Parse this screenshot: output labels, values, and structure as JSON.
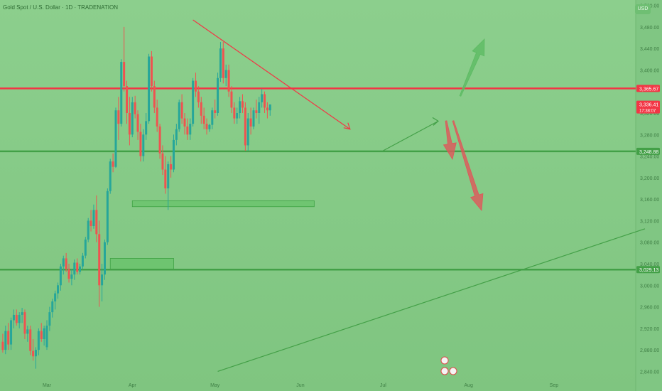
{
  "header": {
    "title": "Gold Spot / U.S. Dollar · 1D · TRADENATION",
    "currency": "USD"
  },
  "chart_data": {
    "type": "candlestick",
    "ylim": [
      2830,
      3530
    ],
    "y_ticks": [
      2840,
      2880,
      2920,
      2960,
      3000,
      3040,
      3080,
      3120,
      3160,
      3200,
      3240,
      3280,
      3320,
      3400,
      3440,
      3480,
      3520
    ],
    "x_ticks": [
      {
        "label": "Mar",
        "day": 0
      },
      {
        "label": "Apr",
        "day": 31
      },
      {
        "label": "May",
        "day": 61
      },
      {
        "label": "Jun",
        "day": 92
      },
      {
        "label": "Jul",
        "day": 122
      },
      {
        "label": "Aug",
        "day": 153
      },
      {
        "label": "Sep",
        "day": 184
      }
    ],
    "price_labels": [
      {
        "value": 3365.67,
        "text": "3,365.67",
        "color": "#f23645"
      },
      {
        "value": 3336.41,
        "text": "3,336.41",
        "sub": "17:38:07",
        "color": "#f23645"
      },
      {
        "value": 3248.88,
        "text": "3,248.88",
        "color": "#43a047"
      },
      {
        "value": 3029.13,
        "text": "3,029.13",
        "color": "#43a047"
      }
    ],
    "horizontal_lines": [
      {
        "value": 3365.67,
        "color": "#f23645"
      },
      {
        "value": 3248.88,
        "color": "#43a047"
      },
      {
        "value": 3029.13,
        "color": "#43a047"
      }
    ],
    "zones": [
      {
        "day_from": 31,
        "day_to": 97,
        "y_low": 3146,
        "y_high": 3157
      },
      {
        "day_from": 23,
        "day_to": 46,
        "y_low": 3030,
        "y_high": 3050
      }
    ],
    "trendlines": [
      {
        "from": [
          62,
          2840
        ],
        "to": [
          217,
          3105
        ],
        "color": "#43a047"
      },
      {
        "from": [
          122,
          3250
        ],
        "to": [
          142,
          3305
        ],
        "color": "#43a047"
      },
      {
        "from": [
          53,
          3493
        ],
        "to": [
          110,
          3290
        ],
        "color": "#f23645"
      }
    ],
    "candles": [
      [
        -16,
        2895,
        2910,
        2875,
        2880
      ],
      [
        -15,
        2880,
        2925,
        2872,
        2915
      ],
      [
        -14,
        2915,
        2930,
        2880,
        2890
      ],
      [
        -13,
        2890,
        2940,
        2880,
        2935
      ],
      [
        -12,
        2935,
        2955,
        2920,
        2945
      ],
      [
        -11,
        2945,
        2955,
        2925,
        2930
      ],
      [
        -10,
        2930,
        2950,
        2920,
        2945
      ],
      [
        -9,
        2945,
        2958,
        2930,
        2950
      ],
      [
        -8,
        2950,
        2955,
        2900,
        2910
      ],
      [
        -7,
        2910,
        2925,
        2895,
        2918
      ],
      [
        -6,
        2918,
        2925,
        2870,
        2878
      ],
      [
        -5,
        2878,
        2900,
        2860,
        2868
      ],
      [
        -4,
        2868,
        2885,
        2845,
        2880
      ],
      [
        -3,
        2880,
        2920,
        2870,
        2915
      ],
      [
        -2,
        2915,
        2930,
        2895,
        2900
      ],
      [
        -1,
        2900,
        2925,
        2888,
        2920
      ],
      [
        0,
        2885,
        2935,
        2880,
        2925
      ],
      [
        1,
        2925,
        2960,
        2915,
        2950
      ],
      [
        2,
        2950,
        2975,
        2940,
        2970
      ],
      [
        3,
        2970,
        2990,
        2955,
        2985
      ],
      [
        4,
        2985,
        3005,
        2975,
        3000
      ],
      [
        5,
        3000,
        3040,
        2990,
        3035
      ],
      [
        6,
        3035,
        3055,
        3020,
        3050
      ],
      [
        7,
        3050,
        3060,
        3025,
        3030
      ],
      [
        8,
        3030,
        3040,
        3005,
        3012
      ],
      [
        9,
        3012,
        3030,
        3000,
        3020
      ],
      [
        10,
        3020,
        3048,
        3010,
        3042
      ],
      [
        11,
        3042,
        3050,
        3020,
        3025
      ],
      [
        12,
        3025,
        3040,
        3020,
        3035
      ],
      [
        13,
        3035,
        3060,
        3030,
        3055
      ],
      [
        14,
        3055,
        3090,
        3050,
        3085
      ],
      [
        15,
        3085,
        3125,
        3080,
        3120
      ],
      [
        16,
        3120,
        3140,
        3100,
        3110
      ],
      [
        17,
        3110,
        3150,
        3105,
        3140
      ],
      [
        18,
        3140,
        3167,
        3080,
        3095
      ],
      [
        19,
        3095,
        3120,
        2960,
        3000
      ],
      [
        20,
        3000,
        3040,
        2970,
        3020
      ],
      [
        21,
        3020,
        3085,
        3010,
        3080
      ],
      [
        22,
        3080,
        3180,
        3075,
        3175
      ],
      [
        23,
        3175,
        3235,
        3170,
        3230
      ],
      [
        24,
        3230,
        3245,
        3210,
        3220
      ],
      [
        25,
        3220,
        3330,
        3218,
        3325
      ],
      [
        26,
        3325,
        3350,
        3270,
        3300
      ],
      [
        27,
        3300,
        3420,
        3295,
        3415
      ],
      [
        28,
        3415,
        3480,
        3360,
        3370
      ],
      [
        29,
        3370,
        3380,
        3300,
        3320
      ],
      [
        30,
        3320,
        3350,
        3260,
        3280
      ],
      [
        31,
        3280,
        3350,
        3275,
        3340
      ],
      [
        32,
        3340,
        3352,
        3310,
        3318
      ],
      [
        33,
        3318,
        3325,
        3270,
        3285
      ],
      [
        34,
        3285,
        3300,
        3230,
        3240
      ],
      [
        35,
        3240,
        3290,
        3230,
        3280
      ],
      [
        36,
        3280,
        3320,
        3270,
        3305
      ],
      [
        37,
        3305,
        3430,
        3300,
        3425
      ],
      [
        38,
        3425,
        3435,
        3360,
        3370
      ],
      [
        39,
        3370,
        3380,
        3320,
        3330
      ],
      [
        40,
        3330,
        3345,
        3285,
        3295
      ],
      [
        41,
        3295,
        3300,
        3235,
        3245
      ],
      [
        42,
        3245,
        3260,
        3205,
        3215
      ],
      [
        43,
        3215,
        3240,
        3170,
        3180
      ],
      [
        44,
        3180,
        3230,
        3140,
        3225
      ],
      [
        45,
        3225,
        3240,
        3200,
        3215
      ],
      [
        46,
        3215,
        3280,
        3210,
        3270
      ],
      [
        47,
        3270,
        3300,
        3260,
        3290
      ],
      [
        48,
        3290,
        3345,
        3285,
        3340
      ],
      [
        49,
        3340,
        3355,
        3300,
        3310
      ],
      [
        50,
        3310,
        3320,
        3280,
        3295
      ],
      [
        51,
        3295,
        3310,
        3270,
        3280
      ],
      [
        52,
        3280,
        3310,
        3270,
        3300
      ],
      [
        53,
        3300,
        3385,
        3295,
        3380
      ],
      [
        54,
        3380,
        3395,
        3350,
        3360
      ],
      [
        55,
        3360,
        3370,
        3330,
        3340
      ],
      [
        56,
        3340,
        3350,
        3300,
        3315
      ],
      [
        57,
        3315,
        3330,
        3290,
        3300
      ],
      [
        58,
        3300,
        3310,
        3280,
        3290
      ],
      [
        59,
        3290,
        3300,
        3285,
        3298
      ],
      [
        60,
        3298,
        3330,
        3290,
        3325
      ],
      [
        61,
        3325,
        3345,
        3310,
        3320
      ],
      [
        62,
        3320,
        3395,
        3315,
        3385
      ],
      [
        63,
        3385,
        3452,
        3378,
        3440
      ],
      [
        64,
        3440,
        3452,
        3375,
        3385
      ],
      [
        65,
        3385,
        3410,
        3370,
        3400
      ],
      [
        66,
        3400,
        3410,
        3350,
        3360
      ],
      [
        67,
        3360,
        3370,
        3320,
        3330
      ],
      [
        68,
        3330,
        3340,
        3300,
        3310
      ],
      [
        69,
        3310,
        3330,
        3300,
        3320
      ],
      [
        70,
        3320,
        3350,
        3310,
        3342
      ],
      [
        71,
        3342,
        3355,
        3320,
        3330
      ],
      [
        72,
        3330,
        3340,
        3250,
        3260
      ],
      [
        73,
        3260,
        3320,
        3250,
        3310
      ],
      [
        74,
        3310,
        3330,
        3280,
        3295
      ],
      [
        75,
        3295,
        3330,
        3290,
        3325
      ],
      [
        76,
        3325,
        3345,
        3310,
        3320
      ],
      [
        77,
        3320,
        3350,
        3300,
        3340
      ],
      [
        78,
        3340,
        3365,
        3330,
        3355
      ],
      [
        79,
        3355,
        3360,
        3320,
        3330
      ],
      [
        80,
        3330,
        3340,
        3310,
        3325
      ],
      [
        81,
        3325,
        3332,
        3315,
        3336
      ]
    ]
  }
}
